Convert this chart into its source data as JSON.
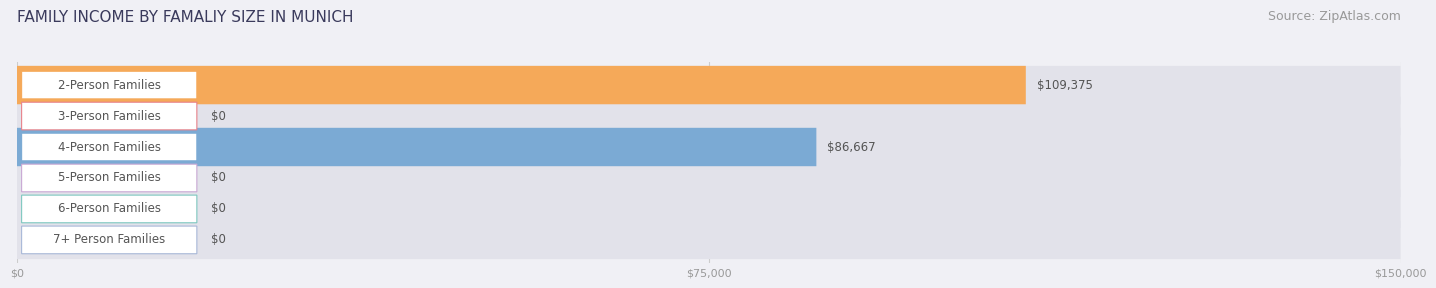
{
  "title": "FAMILY INCOME BY FAMALIY SIZE IN MUNICH",
  "source": "Source: ZipAtlas.com",
  "categories": [
    "2-Person Families",
    "3-Person Families",
    "4-Person Families",
    "5-Person Families",
    "6-Person Families",
    "7+ Person Families"
  ],
  "values": [
    109375,
    0,
    86667,
    0,
    0,
    0
  ],
  "bar_colors": [
    "#f5a959",
    "#e8828a",
    "#7baad4",
    "#c9a8d4",
    "#7ec8c0",
    "#a8b8d8"
  ],
  "value_labels": [
    "$109,375",
    "$0",
    "$86,667",
    "$0",
    "$0",
    "$0"
  ],
  "xlim": [
    0,
    150000
  ],
  "xticks": [
    0,
    75000,
    150000
  ],
  "xticklabels": [
    "$0",
    "$75,000",
    "$150,000"
  ],
  "background_color": "#f0f0f5",
  "bar_bg_color": "#e2e2ea",
  "title_fontsize": 11,
  "source_fontsize": 9,
  "label_fontsize": 8.5,
  "value_fontsize": 8.5
}
